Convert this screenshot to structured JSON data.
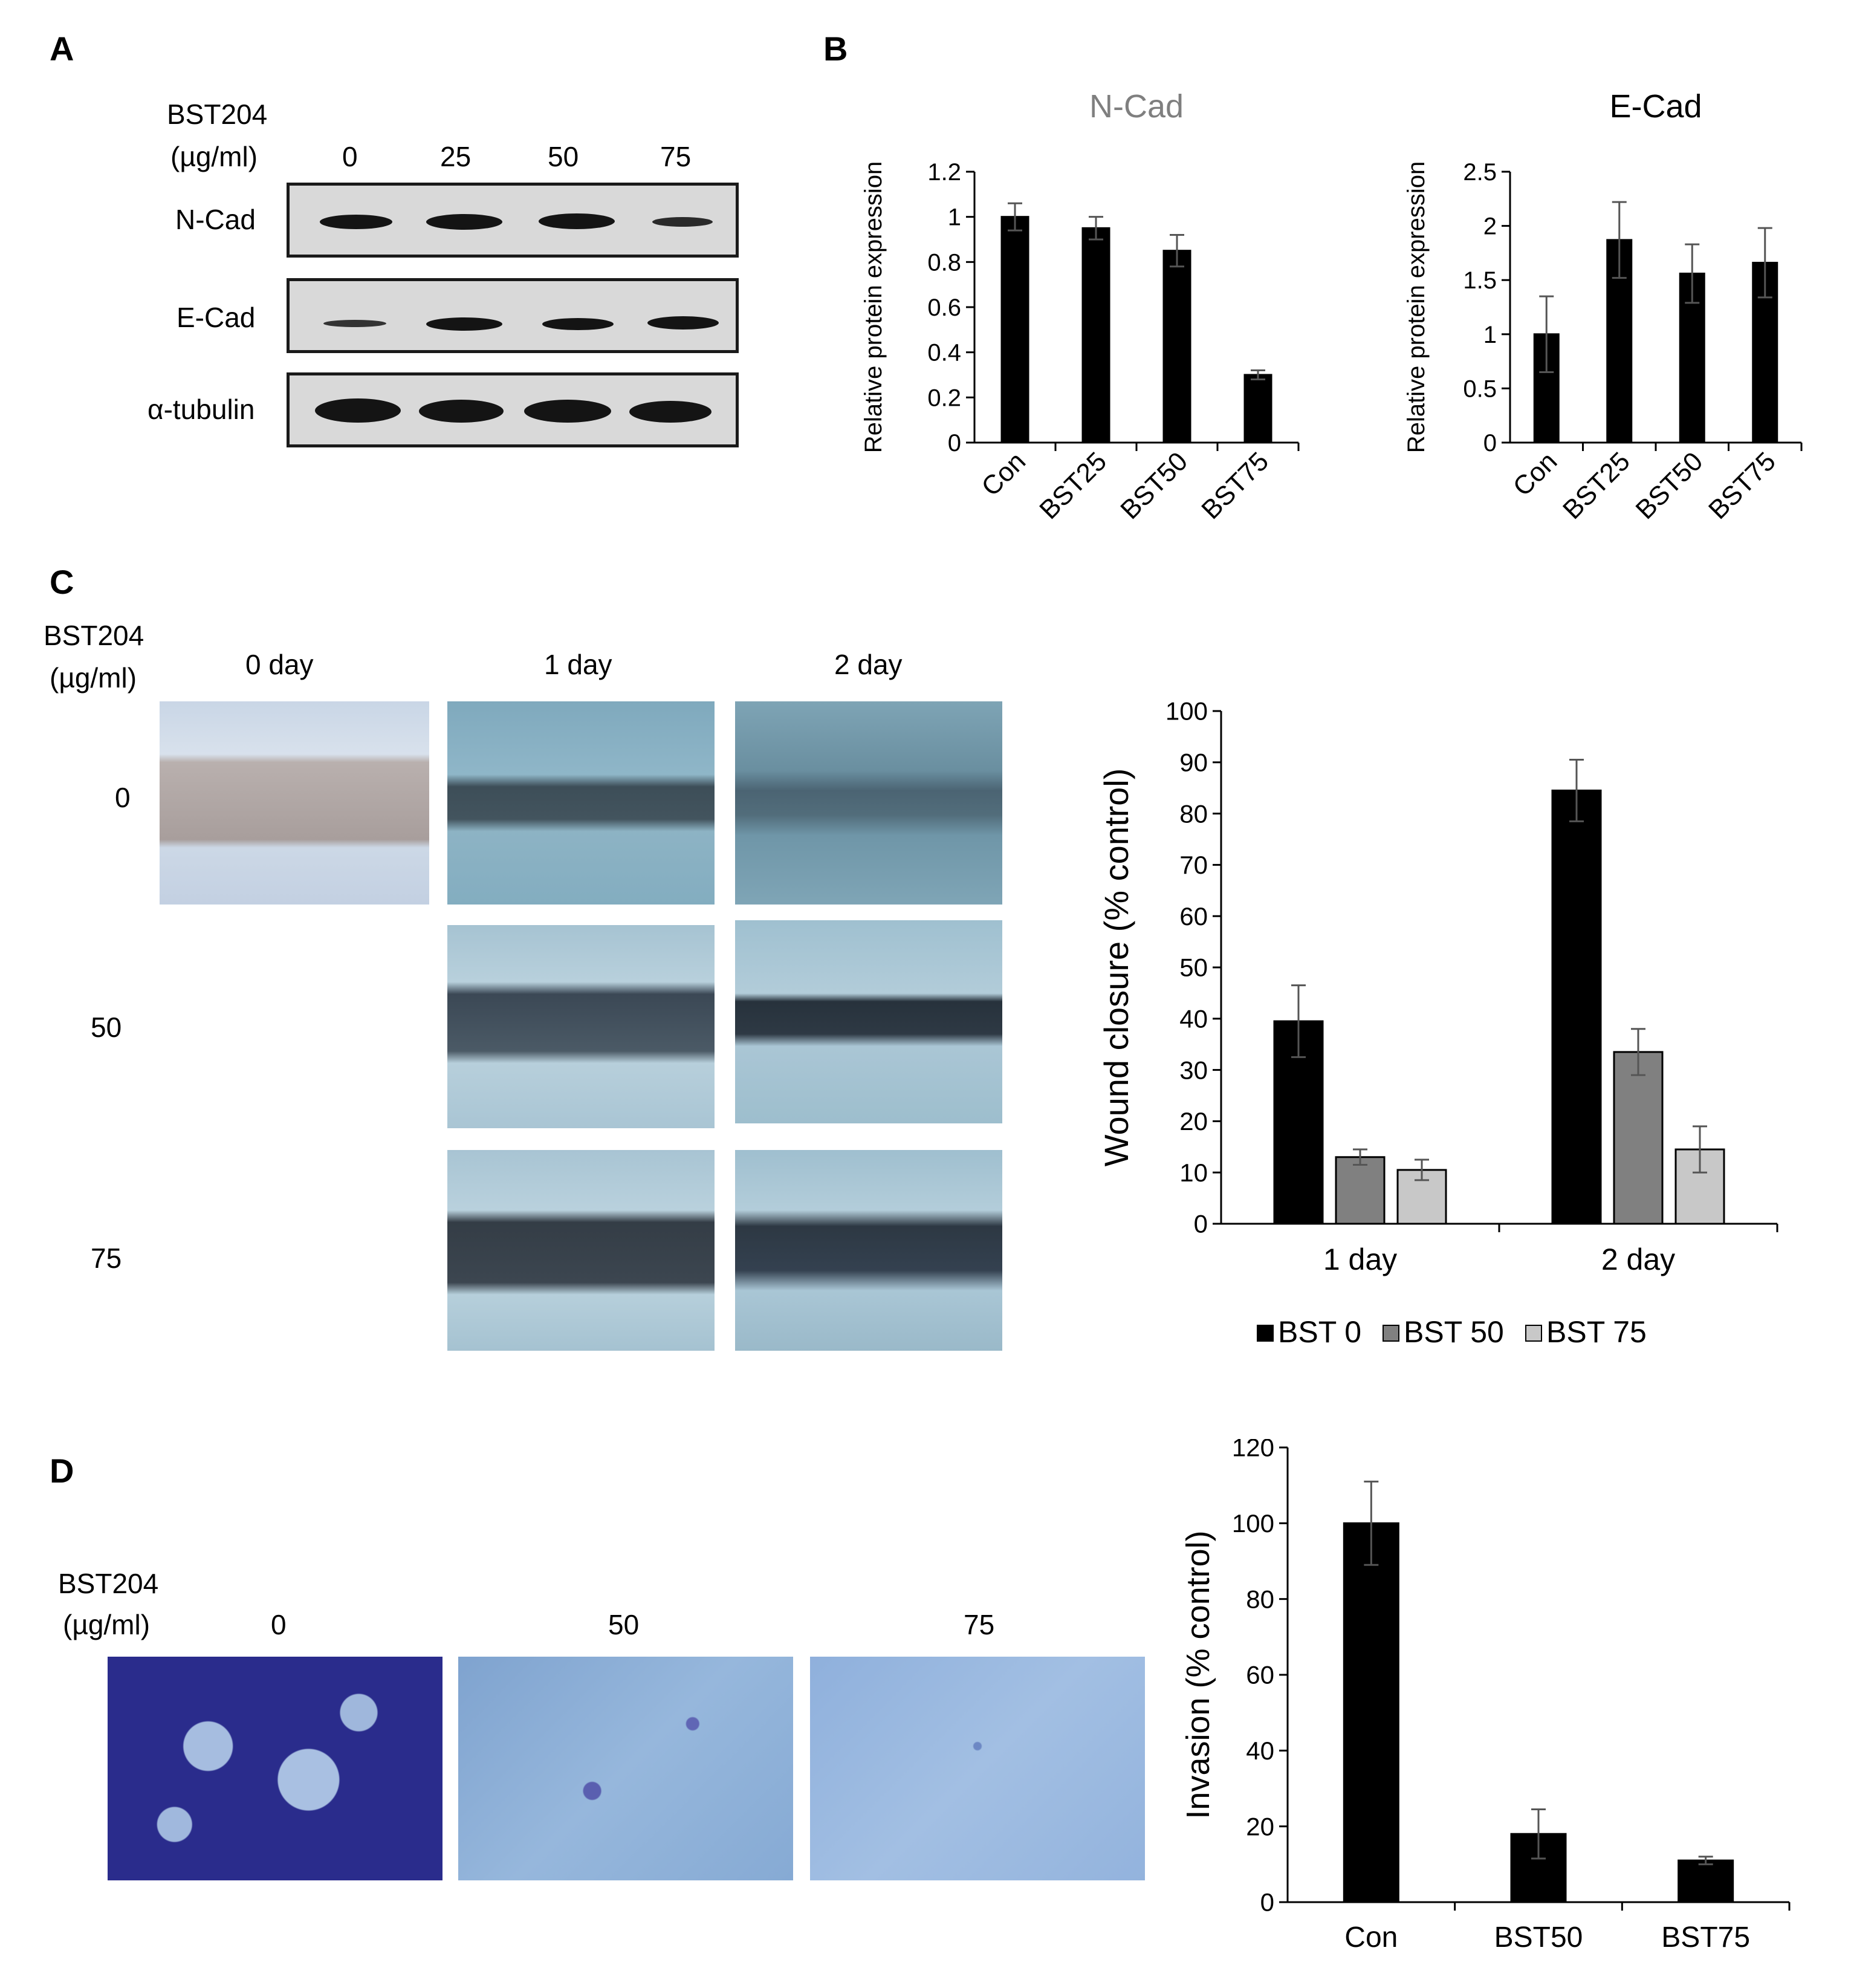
{
  "panels": {
    "A": "A",
    "B": "B",
    "C": "C",
    "D": "D"
  },
  "panelA": {
    "treatment": "BST204",
    "unit": "(µg/ml)",
    "doses": [
      "0",
      "25",
      "50",
      "75"
    ],
    "rows": [
      {
        "label": "N-Cad",
        "band_intensity": [
          1.0,
          0.95,
          0.85,
          0.3
        ]
      },
      {
        "label": "E-Cad",
        "band_intensity": [
          0.45,
          0.85,
          0.7,
          0.75
        ]
      },
      {
        "label": "α-tubulin",
        "band_intensity": [
          1.0,
          1.0,
          1.0,
          1.0
        ]
      }
    ]
  },
  "panelC": {
    "treatment": "BST204",
    "unit": "(µg/ml)",
    "days": [
      "0 day",
      "1 day",
      "2 day"
    ],
    "doses": [
      "0",
      "50",
      "75"
    ]
  },
  "panelD": {
    "treatment": "BST204",
    "unit": "(µg/ml)",
    "doses": [
      "0",
      "50",
      "75"
    ]
  },
  "chart_data": [
    {
      "type": "bar",
      "title": "N-Cad",
      "title_color": "#7f7f7f",
      "ylabel": "Relative  protein expression",
      "categories": [
        "Con",
        "BST25",
        "BST50",
        "BST75"
      ],
      "values": [
        1.0,
        0.95,
        0.85,
        0.3
      ],
      "errors": [
        0.06,
        0.05,
        0.07,
        0.02
      ],
      "ylim": [
        0,
        1.2
      ],
      "yticks": [
        "0",
        "0.2",
        "0.4",
        "0.6",
        "0.8",
        "1",
        "1.2"
      ],
      "bar_color": "#000000"
    },
    {
      "type": "bar",
      "title": "E-Cad",
      "title_color": "#000000",
      "ylabel": "Relative  protein expression",
      "categories": [
        "Con",
        "BST25",
        "BST50",
        "BST75"
      ],
      "values": [
        1.0,
        1.87,
        1.56,
        1.66
      ],
      "errors": [
        0.35,
        0.35,
        0.27,
        0.32
      ],
      "ylim": [
        0,
        2.5
      ],
      "yticks": [
        "0",
        "0.5",
        "1",
        "1.5",
        "2",
        "2.5"
      ],
      "bar_color": "#000000"
    },
    {
      "type": "bar",
      "ylabel": "Wound closure (% control)",
      "categories": [
        "1 day",
        "2 day"
      ],
      "series": [
        {
          "name": "BST 0",
          "color": "#000000",
          "values": [
            39.5,
            84.5
          ],
          "errors": [
            7,
            6
          ]
        },
        {
          "name": "BST 50",
          "color": "#808080",
          "values": [
            13,
            33.5
          ],
          "errors": [
            1.5,
            4.5
          ]
        },
        {
          "name": "BST 75",
          "color": "#c8c8c8",
          "values": [
            10.5,
            14.5
          ],
          "errors": [
            2,
            4.5
          ]
        }
      ],
      "ylim": [
        0,
        100
      ],
      "yticks": [
        "0",
        "10",
        "20",
        "30",
        "40",
        "50",
        "60",
        "70",
        "80",
        "90",
        "100"
      ],
      "legend": "bottom"
    },
    {
      "type": "bar",
      "ylabel": "Invasion (% control)",
      "categories": [
        "Con",
        "BST50",
        "BST75"
      ],
      "values": [
        100,
        18,
        11
      ],
      "errors": [
        11,
        6.5,
        1
      ],
      "ylim": [
        0,
        120
      ],
      "yticks": [
        "0",
        "20",
        "40",
        "60",
        "80",
        "100",
        "120"
      ],
      "bar_color": "#000000"
    }
  ]
}
